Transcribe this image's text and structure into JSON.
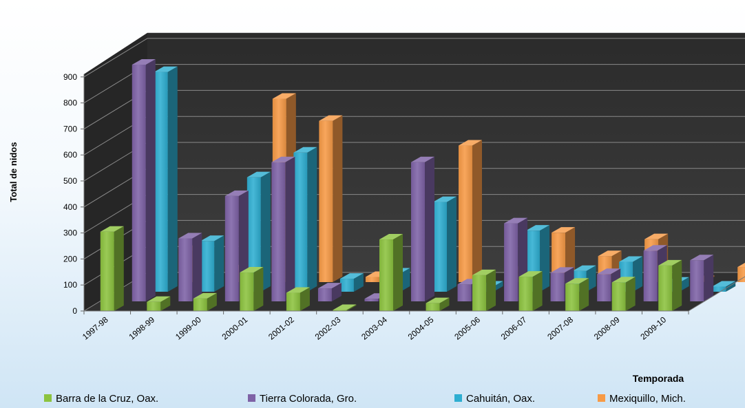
{
  "chart_data": {
    "type": "bar",
    "style": "3d-clustered",
    "xlabel": "Temporada",
    "ylabel": "Total de nidos",
    "ylim": [
      0,
      900
    ],
    "yticks": [
      0,
      100,
      200,
      300,
      400,
      500,
      600,
      700,
      800,
      900
    ],
    "grid": true,
    "legend_position": "bottom",
    "categories": [
      "1997-98",
      "1998-99",
      "1999-00",
      "2000-01",
      "2001-02",
      "2002-03",
      "2003-04",
      "2004-05",
      "2005-06",
      "2006-07",
      "2007-08",
      "2008-09",
      "2009-10"
    ],
    "series": [
      {
        "name": "Barra de la Cruz, Oax.",
        "color": "#8cc33f",
        "values": [
          305,
          35,
          48,
          148,
          70,
          4,
          275,
          30,
          138,
          132,
          105,
          110,
          175
        ]
      },
      {
        "name": "Tierra Colorada, Gro.",
        "color": "#7e62a6",
        "values": [
          910,
          242,
          405,
          535,
          50,
          10,
          535,
          65,
          300,
          110,
          105,
          195,
          158
        ]
      },
      {
        "name": "Cahuitán, Oax.",
        "color": "#2eaed1",
        "values": [
          845,
          195,
          440,
          535,
          50,
          70,
          345,
          20,
          235,
          80,
          115,
          35,
          20
        ]
      },
      {
        "name": "Mexiquillo, Mich.",
        "color": "#f79a46",
        "values": [
          120,
          45,
          705,
          620,
          20,
          5,
          525,
          40,
          190,
          100,
          165,
          4,
          58
        ]
      }
    ]
  }
}
